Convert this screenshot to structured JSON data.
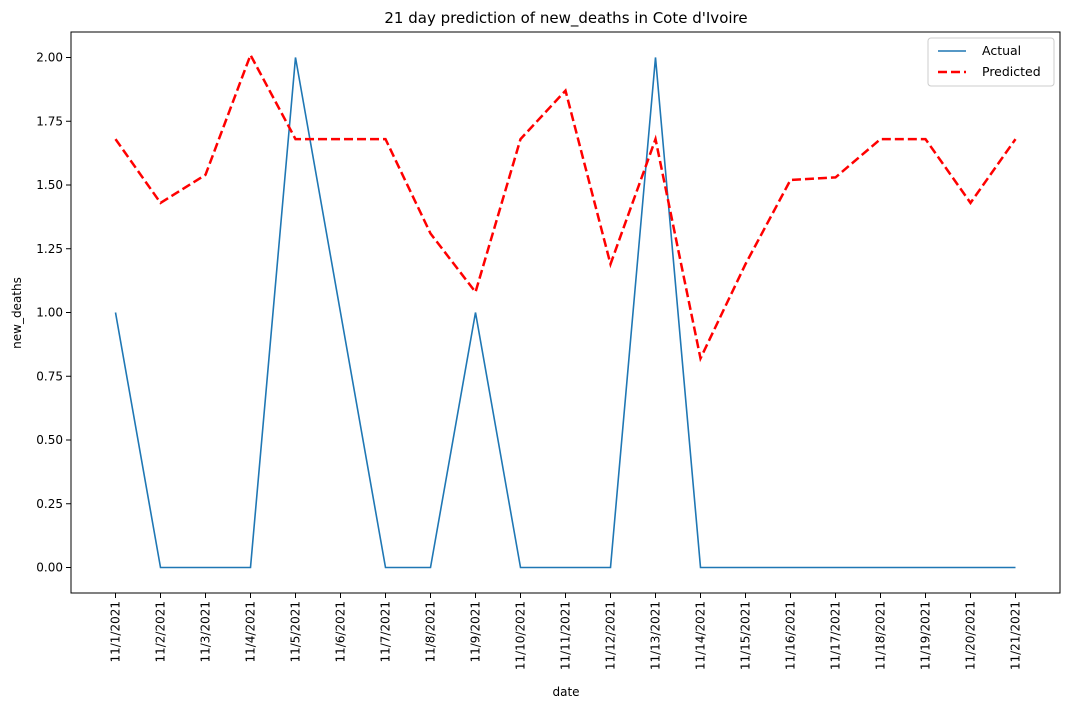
{
  "chart_data": {
    "type": "line",
    "title": "21 day prediction of new_deaths in Cote d'Ivoire",
    "xlabel": "date",
    "ylabel": "new_deaths",
    "categories": [
      "11/1/2021",
      "11/2/2021",
      "11/3/2021",
      "11/4/2021",
      "11/5/2021",
      "11/6/2021",
      "11/7/2021",
      "11/8/2021",
      "11/9/2021",
      "11/10/2021",
      "11/11/2021",
      "11/12/2021",
      "11/13/2021",
      "11/14/2021",
      "11/15/2021",
      "11/16/2021",
      "11/17/2021",
      "11/18/2021",
      "11/19/2021",
      "11/20/2021",
      "11/21/2021"
    ],
    "yticks": [
      "0.00",
      "0.25",
      "0.50",
      "0.75",
      "1.00",
      "1.25",
      "1.50",
      "1.75",
      "2.00"
    ],
    "ylim": [
      -0.1,
      2.1
    ],
    "grid": false,
    "legend_position": "top-right",
    "series": [
      {
        "name": "Actual",
        "color": "#1f77b4",
        "style": "solid",
        "values": [
          1,
          0,
          0,
          0,
          2,
          1,
          0,
          0,
          1,
          0,
          0,
          0,
          2,
          0,
          0,
          0,
          0,
          0,
          0,
          0,
          0
        ]
      },
      {
        "name": "Predicted",
        "color": "#ff0000",
        "style": "dashed",
        "values": [
          1.68,
          1.43,
          1.54,
          2.01,
          1.68,
          1.68,
          1.68,
          1.31,
          1.08,
          1.68,
          1.87,
          1.19,
          1.68,
          0.82,
          1.19,
          1.52,
          1.53,
          1.68,
          1.68,
          1.43,
          1.68
        ]
      }
    ]
  }
}
